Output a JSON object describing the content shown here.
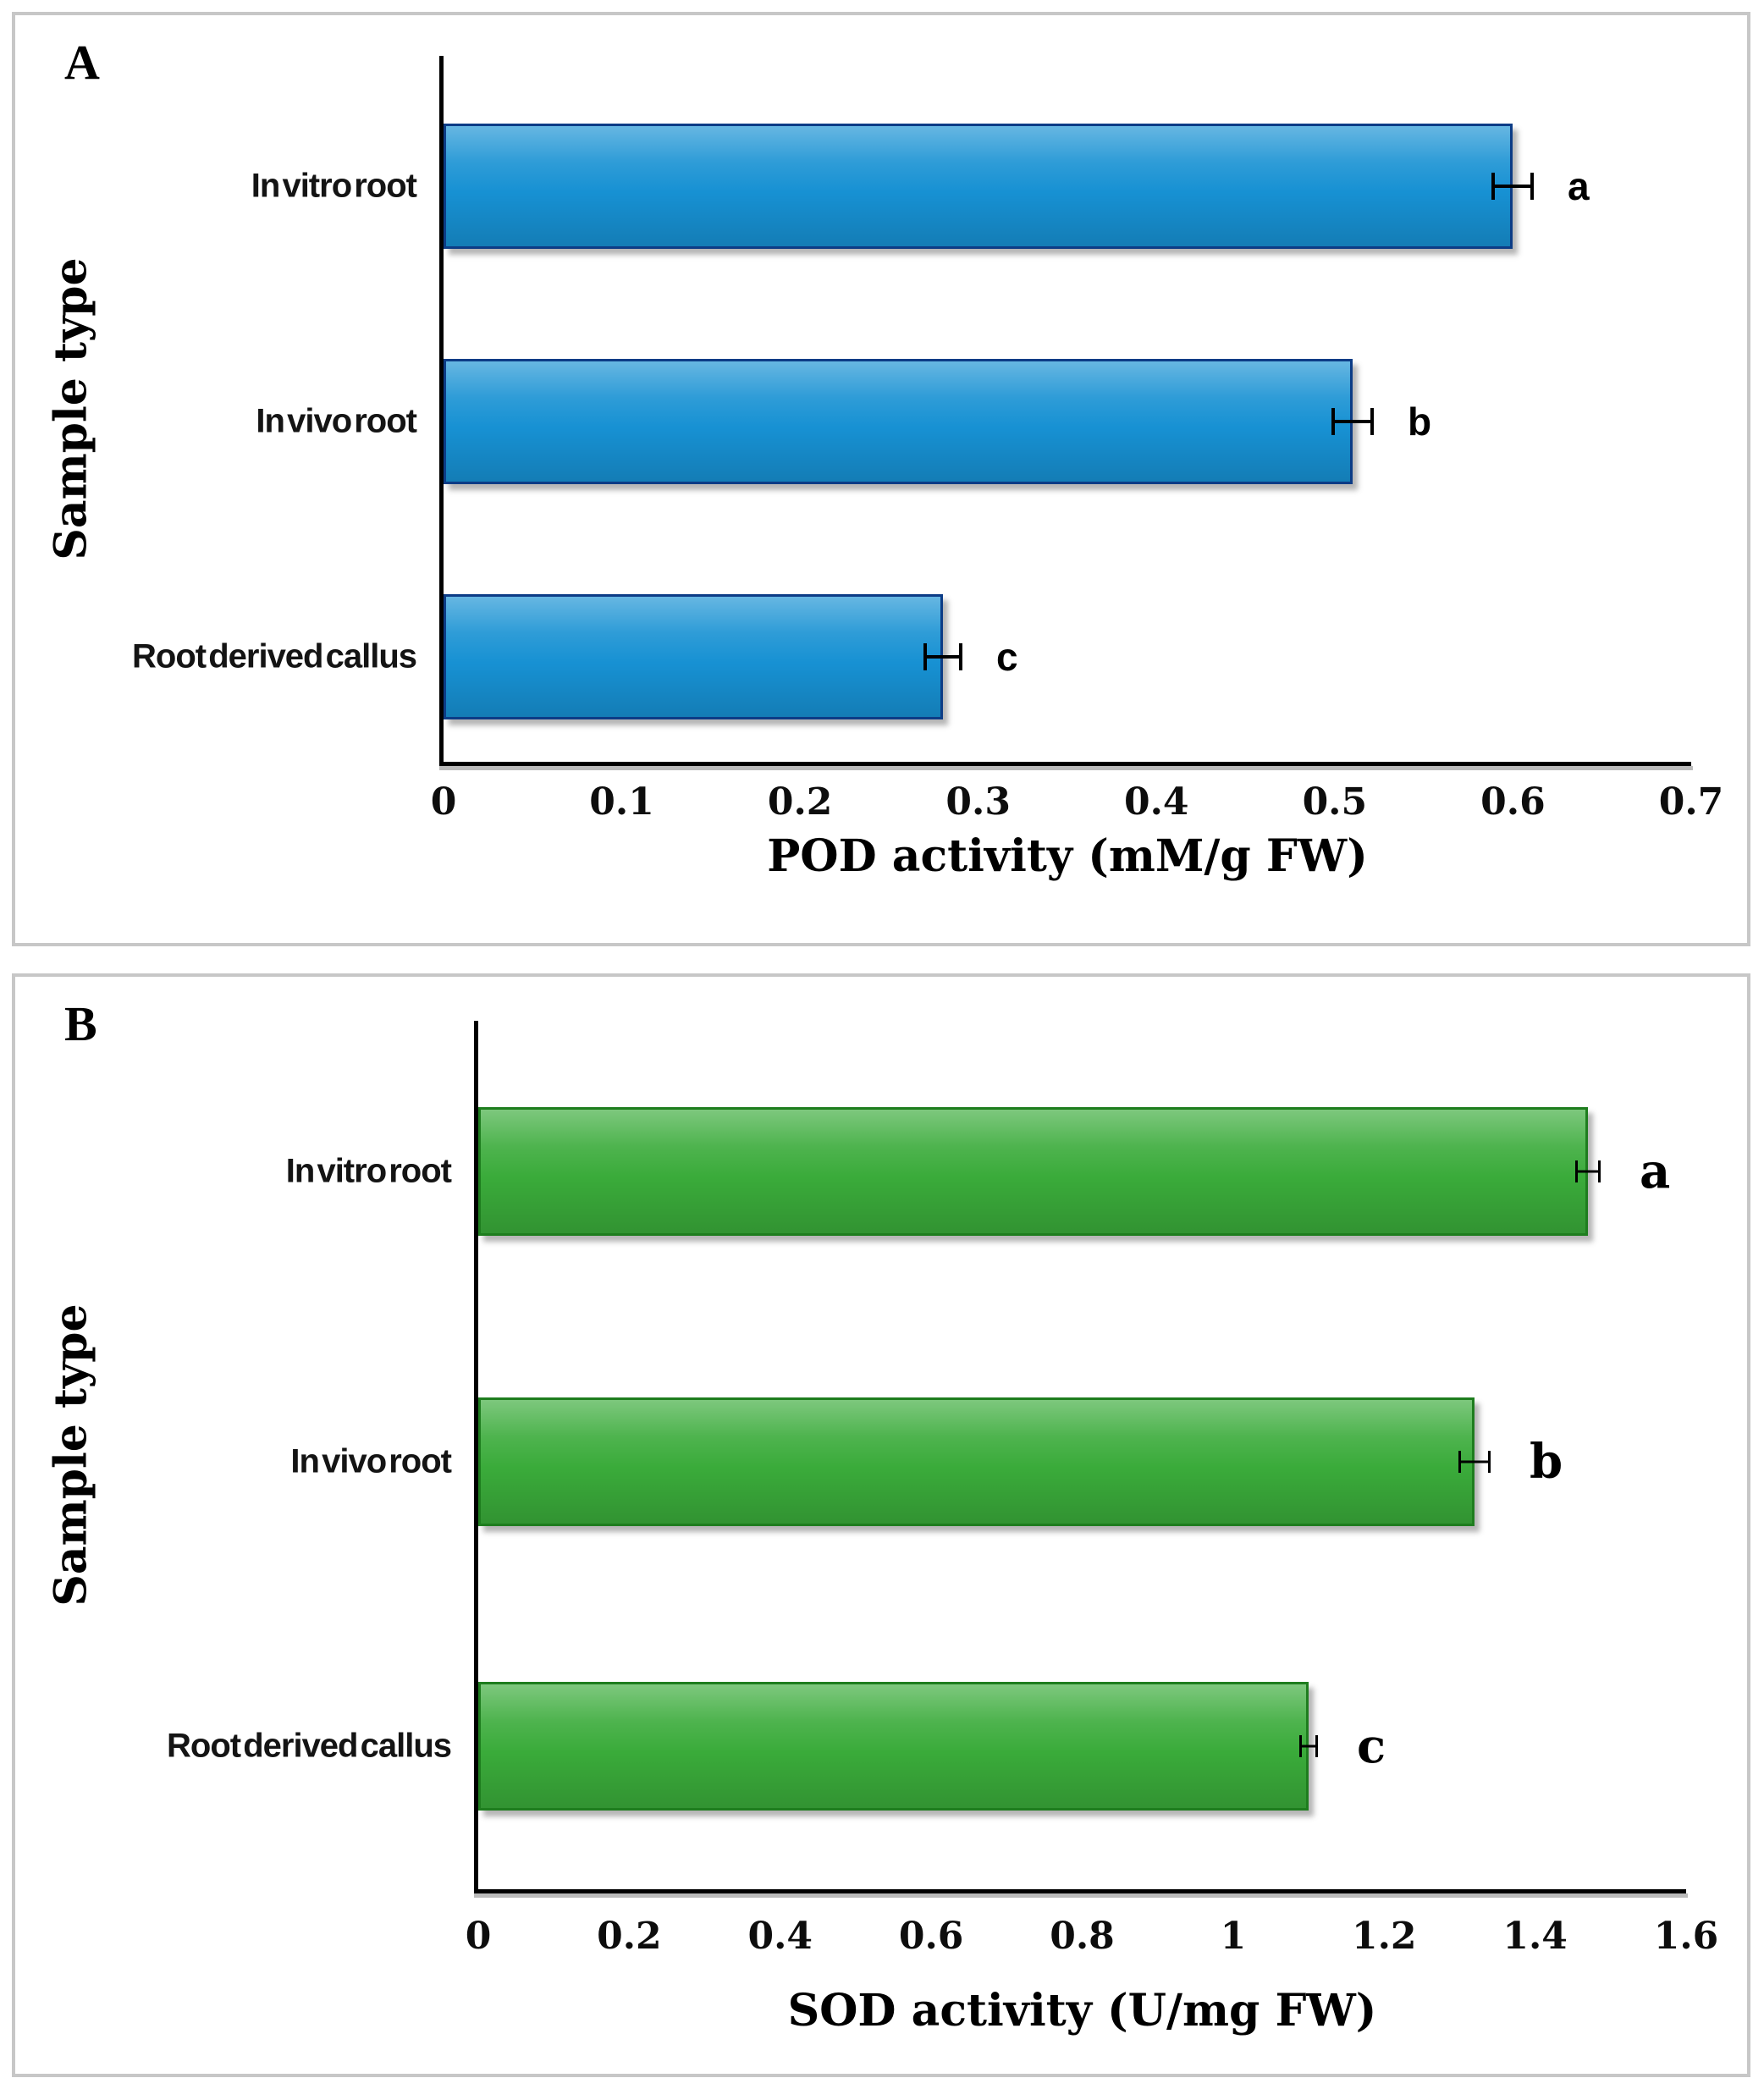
{
  "chart_data": [
    {
      "type": "bar",
      "orientation": "horizontal",
      "panel_label": "A",
      "categories": [
        "In vitro root",
        "In vivo root",
        "Root derived callus"
      ],
      "values": [
        0.6,
        0.51,
        0.28
      ],
      "errors": [
        0.012,
        0.012,
        0.011
      ],
      "sig_letters": [
        "a",
        "b",
        "c"
      ],
      "xlabel": "POD activity (mM/g FW)",
      "ylabel": "Sample type",
      "xlim": [
        0,
        0.7
      ],
      "xticks": [
        0,
        0.1,
        0.2,
        0.3,
        0.4,
        0.5,
        0.6,
        0.7
      ],
      "xtick_labels": [
        "0",
        "0.1",
        "0.2",
        "0.3",
        "0.4",
        "0.5",
        "0.6",
        "0.7"
      ],
      "grid": false,
      "legend": "none",
      "bar_color": "#1791d3",
      "bar_border_color": "#0c3c86"
    },
    {
      "type": "bar",
      "orientation": "horizontal",
      "panel_label": "B",
      "categories": [
        "In vitro root",
        "In vivo root",
        "Root derived callus"
      ],
      "values": [
        1.47,
        1.32,
        1.1
      ],
      "errors": [
        0.017,
        0.021,
        0.012
      ],
      "sig_letters": [
        "a",
        "b",
        "c"
      ],
      "xlabel": "SOD activity (U/mg FW)",
      "ylabel": "Sample type",
      "xlim": [
        0,
        1.6
      ],
      "xticks": [
        0,
        0.2,
        0.4,
        0.6,
        0.8,
        1,
        1.2,
        1.4,
        1.6
      ],
      "xtick_labels": [
        "0",
        "0.2",
        "0.4",
        "0.6",
        "0.8",
        "1",
        "1.2",
        "1.4",
        "1.6"
      ],
      "grid": false,
      "legend": "none",
      "bar_color": "#3aab3a",
      "bar_border_color": "#1e7d1e"
    }
  ]
}
